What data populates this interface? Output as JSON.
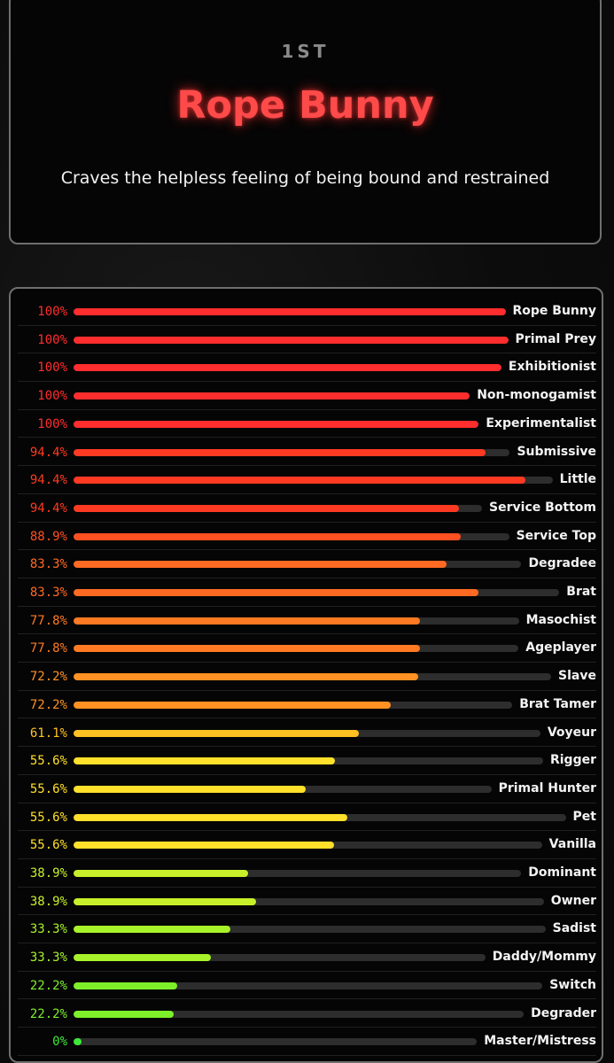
{
  "hero": {
    "rank": "1ST",
    "title": "Rope Bunny",
    "description": "Craves the helpless feeling of being bound and restrained"
  },
  "results": [
    {
      "pct_label": "100%",
      "value": 100,
      "label": "Rope Bunny",
      "color": "#ff2d2d"
    },
    {
      "pct_label": "100%",
      "value": 100,
      "label": "Primal Prey",
      "color": "#ff2d2d"
    },
    {
      "pct_label": "100%",
      "value": 100,
      "label": "Exhibitionist",
      "color": "#ff2d2d"
    },
    {
      "pct_label": "100%",
      "value": 100,
      "label": "Non-monogamist",
      "color": "#ff2d2d"
    },
    {
      "pct_label": "100%",
      "value": 100,
      "label": "Experimentalist",
      "color": "#ff2d2d"
    },
    {
      "pct_label": "94.4%",
      "value": 94.4,
      "label": "Submissive",
      "color": "#ff3a22"
    },
    {
      "pct_label": "94.4%",
      "value": 94.4,
      "label": "Little",
      "color": "#ff3a22"
    },
    {
      "pct_label": "94.4%",
      "value": 94.4,
      "label": "Service Bottom",
      "color": "#ff3a22"
    },
    {
      "pct_label": "88.9%",
      "value": 88.9,
      "label": "Service Top",
      "color": "#ff5022"
    },
    {
      "pct_label": "83.3%",
      "value": 83.3,
      "label": "Degradee",
      "color": "#ff6a22"
    },
    {
      "pct_label": "83.3%",
      "value": 83.3,
      "label": "Brat",
      "color": "#ff6a22"
    },
    {
      "pct_label": "77.8%",
      "value": 77.8,
      "label": "Masochist",
      "color": "#ff7a22"
    },
    {
      "pct_label": "77.8%",
      "value": 77.8,
      "label": "Ageplayer",
      "color": "#ff7a22"
    },
    {
      "pct_label": "72.2%",
      "value": 72.2,
      "label": "Slave",
      "color": "#ff9222"
    },
    {
      "pct_label": "72.2%",
      "value": 72.2,
      "label": "Brat Tamer",
      "color": "#ff9222"
    },
    {
      "pct_label": "61.1%",
      "value": 61.1,
      "label": "Voyeur",
      "color": "#ffc222"
    },
    {
      "pct_label": "55.6%",
      "value": 55.6,
      "label": "Rigger",
      "color": "#ffe02a"
    },
    {
      "pct_label": "55.6%",
      "value": 55.6,
      "label": "Primal Hunter",
      "color": "#ffe02a"
    },
    {
      "pct_label": "55.6%",
      "value": 55.6,
      "label": "Pet",
      "color": "#ffe02a"
    },
    {
      "pct_label": "55.6%",
      "value": 55.6,
      "label": "Vanilla",
      "color": "#ffe02a"
    },
    {
      "pct_label": "38.9%",
      "value": 38.9,
      "label": "Dominant",
      "color": "#c8f02a"
    },
    {
      "pct_label": "38.9%",
      "value": 38.9,
      "label": "Owner",
      "color": "#c8f02a"
    },
    {
      "pct_label": "33.3%",
      "value": 33.3,
      "label": "Sadist",
      "color": "#a8f22a"
    },
    {
      "pct_label": "33.3%",
      "value": 33.3,
      "label": "Daddy/Mommy",
      "color": "#a8f22a"
    },
    {
      "pct_label": "22.2%",
      "value": 22.2,
      "label": "Switch",
      "color": "#7ef02a"
    },
    {
      "pct_label": "22.2%",
      "value": 22.2,
      "label": "Degrader",
      "color": "#7ef02a"
    },
    {
      "pct_label": "0%",
      "value": 0,
      "label": "Master/Mistress",
      "color": "#3ee83a"
    }
  ]
}
